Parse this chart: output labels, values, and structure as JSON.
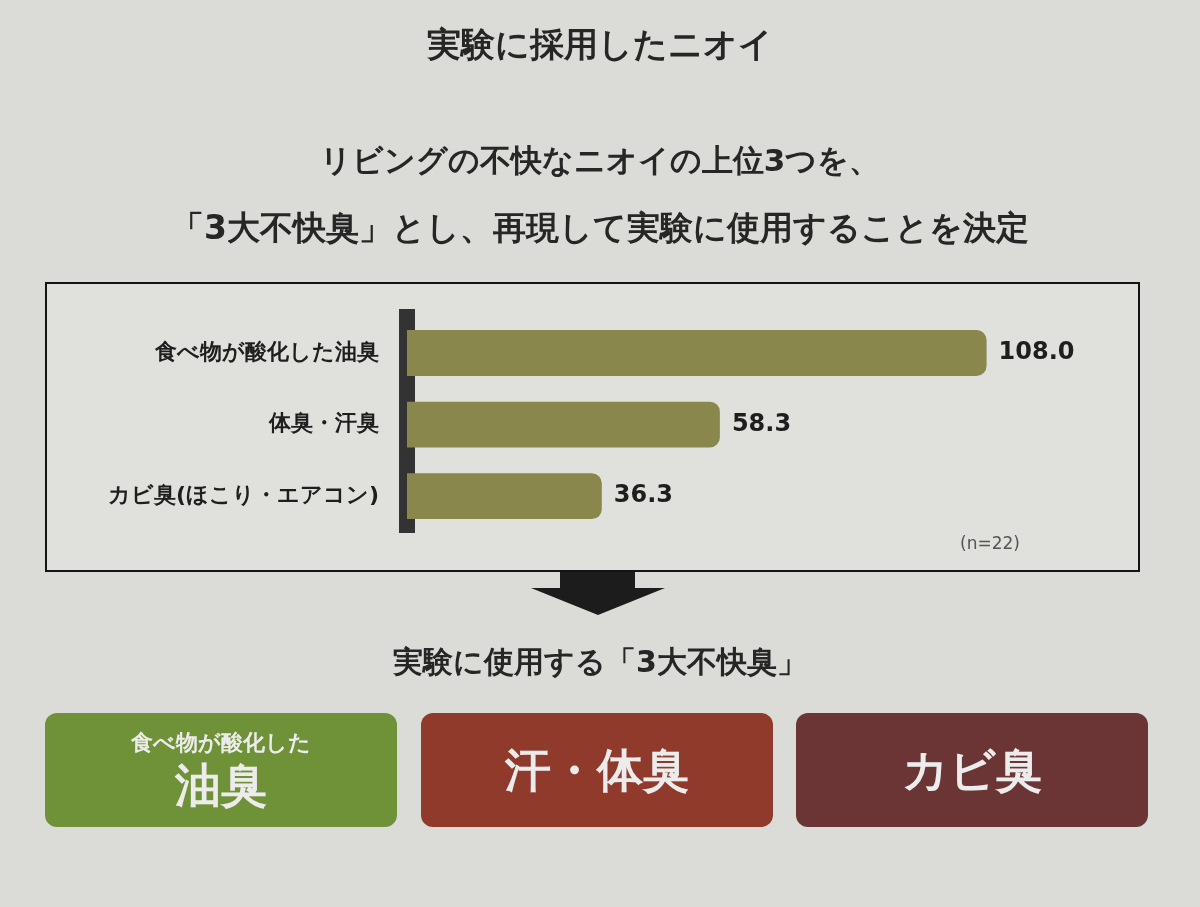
{
  "chart_data": {
    "type": "bar",
    "orientation": "horizontal",
    "title": "実験に採用したニオイ",
    "subtitle": "リビングの不快なニオイの上位3つを、",
    "categories": [
      "食べ物が酸化した油臭",
      "体臭・汗臭",
      "カビ臭(ほこり・エアコン)"
    ],
    "values": [
      108.0,
      58.3,
      36.3
    ],
    "value_labels": [
      "108.0",
      "58.3",
      "36.3"
    ],
    "color": "#8a874c",
    "annotations": [
      "「3大不快臭」とし、再現して実験に使用することを決定",
      "(n=22)",
      "実験に使用する「3大不快臭」",
      "食べ物が酸化した",
      "油臭",
      "汗・体臭",
      "カビ臭"
    ]
  }
}
